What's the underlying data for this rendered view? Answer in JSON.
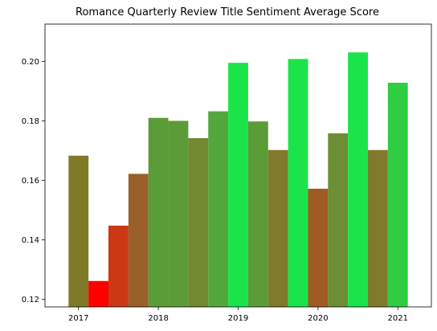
{
  "chart_data": {
    "type": "bar",
    "title": "Romance Quarterly Review Title Sentiment Average Score",
    "xlabel": "",
    "ylabel": "",
    "x_ticks": [
      {
        "label": "2017",
        "value": 2017.0
      },
      {
        "label": "2018",
        "value": 2018.0
      },
      {
        "label": "2019",
        "value": 2019.0
      },
      {
        "label": "2020",
        "value": 2020.0
      },
      {
        "label": "2021",
        "value": 2021.0
      }
    ],
    "y_ticks": [
      {
        "label": "0.12",
        "value": 0.12
      },
      {
        "label": "0.14",
        "value": 0.14
      },
      {
        "label": "0.16",
        "value": 0.16
      },
      {
        "label": "0.18",
        "value": 0.18
      },
      {
        "label": "0.20",
        "value": 0.2
      }
    ],
    "xlim": [
      2016.58,
      2021.42
    ],
    "ylim": [
      0.1175,
      0.2125
    ],
    "bar_width": 0.25,
    "bars": [
      {
        "x": 2017.0,
        "value": 0.1683,
        "color": "#7f7a28"
      },
      {
        "x": 2017.25,
        "value": 0.1262,
        "color": "#ff0000"
      },
      {
        "x": 2017.5,
        "value": 0.1448,
        "color": "#cc3714"
      },
      {
        "x": 2017.75,
        "value": 0.1622,
        "color": "#99602a"
      },
      {
        "x": 2018.0,
        "value": 0.181,
        "color": "#5c9c38"
      },
      {
        "x": 2018.25,
        "value": 0.18,
        "color": "#5c9c38"
      },
      {
        "x": 2018.5,
        "value": 0.1742,
        "color": "#728a31"
      },
      {
        "x": 2018.75,
        "value": 0.1832,
        "color": "#52a83c"
      },
      {
        "x": 2019.0,
        "value": 0.1995,
        "color": "#1be44a"
      },
      {
        "x": 2019.25,
        "value": 0.1798,
        "color": "#5c9c38"
      },
      {
        "x": 2019.5,
        "value": 0.1702,
        "color": "#7f7a2c"
      },
      {
        "x": 2019.75,
        "value": 0.2008,
        "color": "#1be44a"
      },
      {
        "x": 2020.0,
        "value": 0.1572,
        "color": "#a15a22"
      },
      {
        "x": 2020.25,
        "value": 0.1758,
        "color": "#6c8e34"
      },
      {
        "x": 2020.5,
        "value": 0.203,
        "color": "#1be44a"
      },
      {
        "x": 2020.75,
        "value": 0.1702,
        "color": "#7f7a2c"
      },
      {
        "x": 2021.0,
        "value": 0.1928,
        "color": "#30cc42"
      }
    ]
  }
}
